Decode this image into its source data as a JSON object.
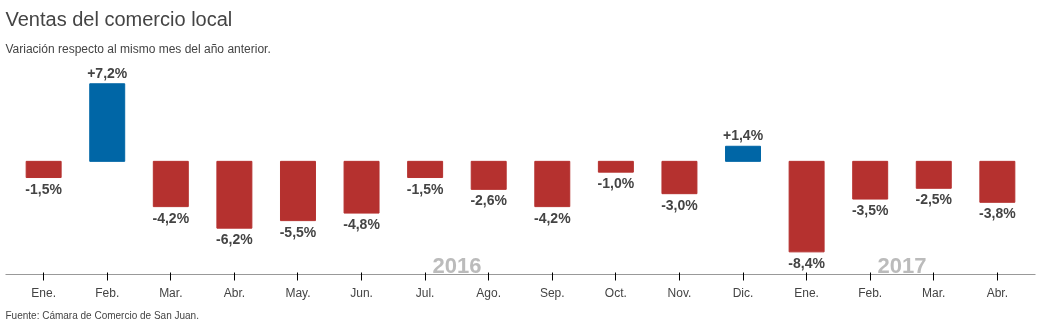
{
  "chart_data": {
    "type": "bar",
    "title": "Ventas del comercio local",
    "subtitle": "Variación respecto al mismo mes del año anterior.",
    "categories": [
      "Ene.",
      "Feb.",
      "Mar.",
      "Abr.",
      "May.",
      "Jun.",
      "Jul.",
      "Ago.",
      "Sep.",
      "Oct.",
      "Nov.",
      "Dic.",
      "Ene.",
      "Feb.",
      "Mar.",
      "Abr."
    ],
    "values": [
      -1.5,
      7.2,
      -4.2,
      -6.2,
      -5.5,
      -4.8,
      -1.5,
      -2.6,
      -4.2,
      -1.0,
      -3.0,
      1.4,
      -8.4,
      -3.5,
      -2.5,
      -3.8
    ],
    "colors": [
      "#b5312f",
      "#0066a6",
      "#b5312f",
      "#b5312f",
      "#b5312f",
      "#b5312f",
      "#b5312f",
      "#b5312f",
      "#b5312f",
      "#b5312f",
      "#b5312f",
      "#0066a6",
      "#b5312f",
      "#b5312f",
      "#b5312f",
      "#b5312f"
    ],
    "value_labels": [
      "-1,5%",
      "+7,2%",
      "-4,2%",
      "-6,2%",
      "-5,5%",
      "-4,8%",
      "-1,5%",
      "-2,6%",
      "-4,2%",
      "-1,0%",
      "-3,0%",
      "+1,4%",
      "-8,4%",
      "-3,5%",
      "-2,5%",
      "-3,8%"
    ],
    "tick_labels": "x",
    "grid": false,
    "annotations": [
      "2016",
      "2017",
      "Fuente: Cámara de Comercio de San Juan."
    ]
  }
}
